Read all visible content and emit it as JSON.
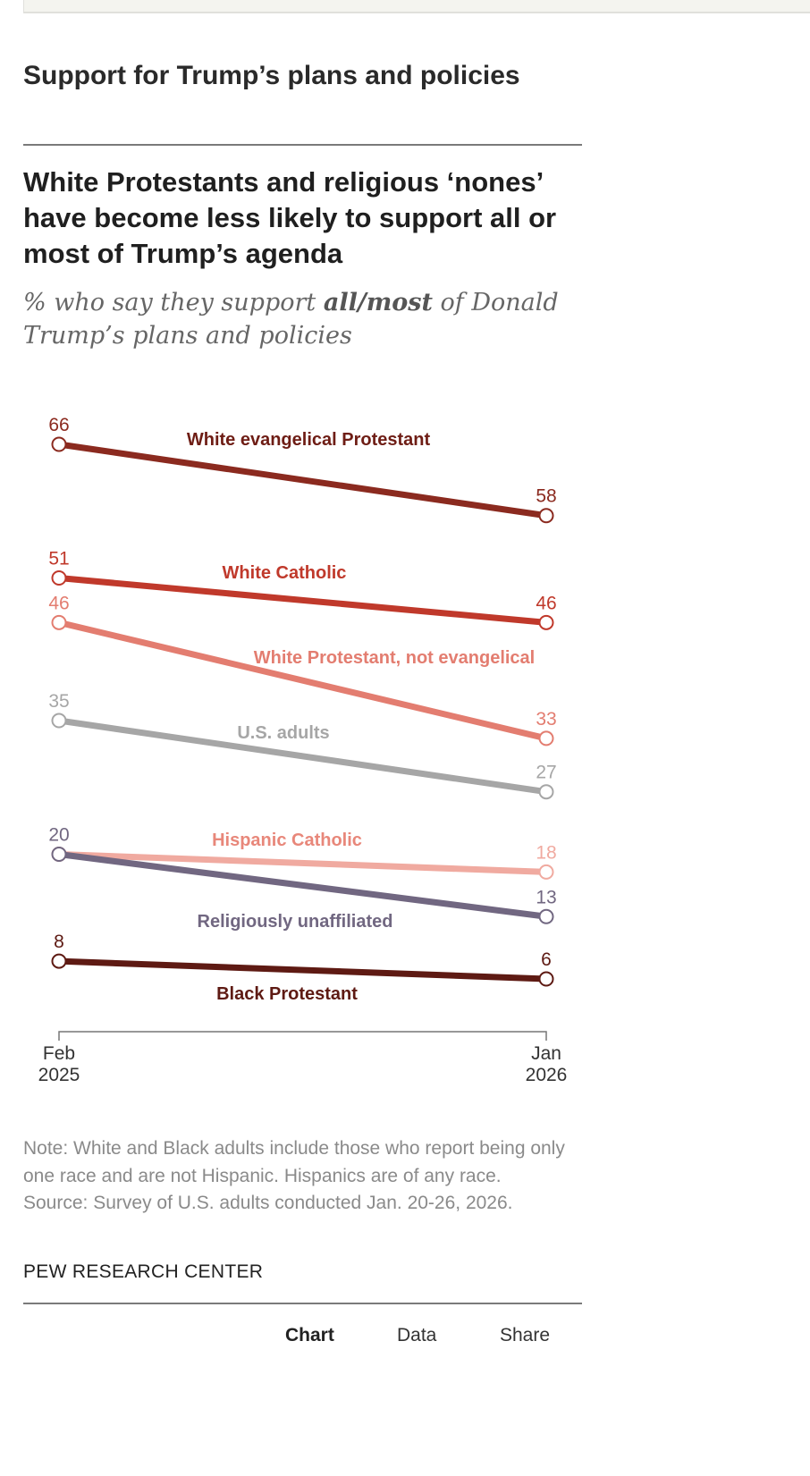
{
  "section": {
    "title": "Support for Trump’s plans and policies"
  },
  "figure": {
    "title": "White Protestants and religious ‘nones’ have become less likely to support all or most of Trump’s agenda",
    "subtitle_pre": "% who say they support ",
    "subtitle_bold": "all/most",
    "subtitle_post": " of Donald Trump’s plans and policies",
    "note": "Note: White and Black adults include those who report being only one race and are not Hispanic. Hispanics are of any race.",
    "source": "Source: Survey of U.S. adults conducted Jan. 20-26, 2026.",
    "brand": "PEW RESEARCH CENTER"
  },
  "tabs": [
    {
      "label": "Chart",
      "active": true
    },
    {
      "label": "Data",
      "active": false
    },
    {
      "label": "Share",
      "active": false
    }
  ],
  "chart_data": {
    "type": "line",
    "title": "White Protestants and religious ‘nones’ have become less likely to support all or most of Trump’s agenda",
    "subtitle": "% who say they support all/most of Donald Trump’s plans and policies",
    "xlabel": "",
    "ylabel": "",
    "x": [
      "Feb 2025",
      "Jan 2026"
    ],
    "x_tick_labels": [
      [
        "Feb",
        "2025"
      ],
      [
        "Jan",
        "2026"
      ]
    ],
    "ylim": [
      6,
      66
    ],
    "grid": false,
    "legend": "inline labels",
    "series": [
      {
        "name": "White evangelical Protestant",
        "values": [
          66,
          58
        ],
        "color": "#8b2a1f",
        "label_color": "#6e1d15"
      },
      {
        "name": "White Catholic",
        "values": [
          51,
          46
        ],
        "color": "#c0392b",
        "label_color": "#c0392b"
      },
      {
        "name": "White Protestant, not evangelical",
        "values": [
          46,
          33
        ],
        "color": "#e37d70",
        "label_color": "#e37d70"
      },
      {
        "name": "U.S. adults",
        "values": [
          35,
          27
        ],
        "color": "#a6a6a6",
        "label_color": "#a6a6a6"
      },
      {
        "name": "Hispanic Catholic",
        "values": [
          20,
          18
        ],
        "color": "#f0aaa0",
        "label_color": "#e8877a"
      },
      {
        "name": "Religiously unaffiliated",
        "values": [
          20,
          13
        ],
        "color": "#716781",
        "label_color": "#716781"
      },
      {
        "name": "Black Protestant",
        "values": [
          8,
          6
        ],
        "color": "#5e1a13",
        "label_color": "#5e1a13"
      }
    ]
  }
}
